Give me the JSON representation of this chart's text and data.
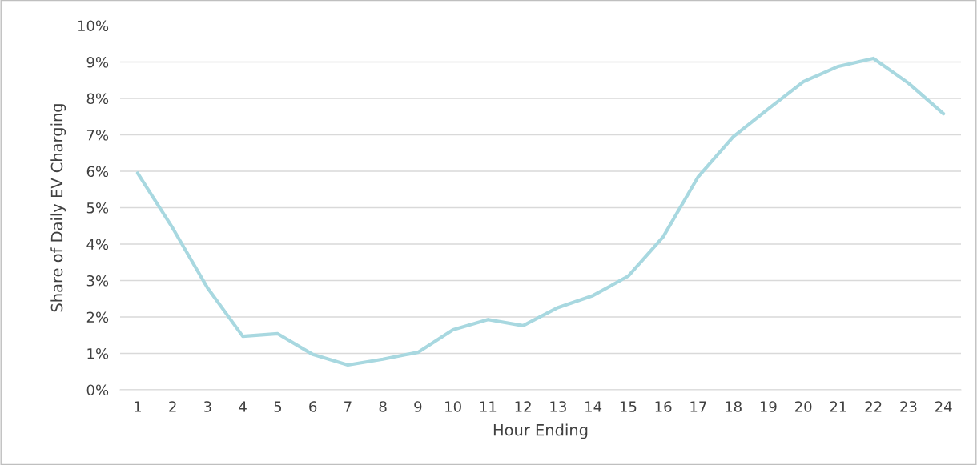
{
  "chart_data": {
    "type": "line",
    "xlabel": "Hour Ending",
    "ylabel": "Share of Daily EV Charging",
    "categories": [
      "1",
      "2",
      "3",
      "4",
      "5",
      "6",
      "7",
      "8",
      "9",
      "10",
      "11",
      "12",
      "13",
      "14",
      "15",
      "16",
      "17",
      "18",
      "19",
      "20",
      "21",
      "22",
      "23",
      "24"
    ],
    "series": [
      {
        "color": "#a8d8e0",
        "values": [
          5.95,
          4.44,
          2.79,
          1.47,
          1.54,
          0.97,
          0.68,
          0.84,
          1.03,
          1.65,
          1.93,
          1.76,
          2.26,
          2.59,
          3.12,
          4.2,
          5.85,
          6.95,
          7.71,
          8.46,
          8.88,
          9.1,
          8.42,
          7.58
        ]
      }
    ],
    "ylim": [
      0,
      10
    ],
    "yticks": [
      {
        "value": 0,
        "label": "0%"
      },
      {
        "value": 1,
        "label": "1%"
      },
      {
        "value": 2,
        "label": "2%"
      },
      {
        "value": 3,
        "label": "3%"
      },
      {
        "value": 4,
        "label": "4%"
      },
      {
        "value": 5,
        "label": "5%"
      },
      {
        "value": 6,
        "label": "6%"
      },
      {
        "value": 7,
        "label": "7%"
      },
      {
        "value": 8,
        "label": "8%"
      },
      {
        "value": 9,
        "label": "9%"
      },
      {
        "value": 10,
        "label": "10%"
      }
    ],
    "grid": "y",
    "marker": "none",
    "line_style": "solid"
  }
}
